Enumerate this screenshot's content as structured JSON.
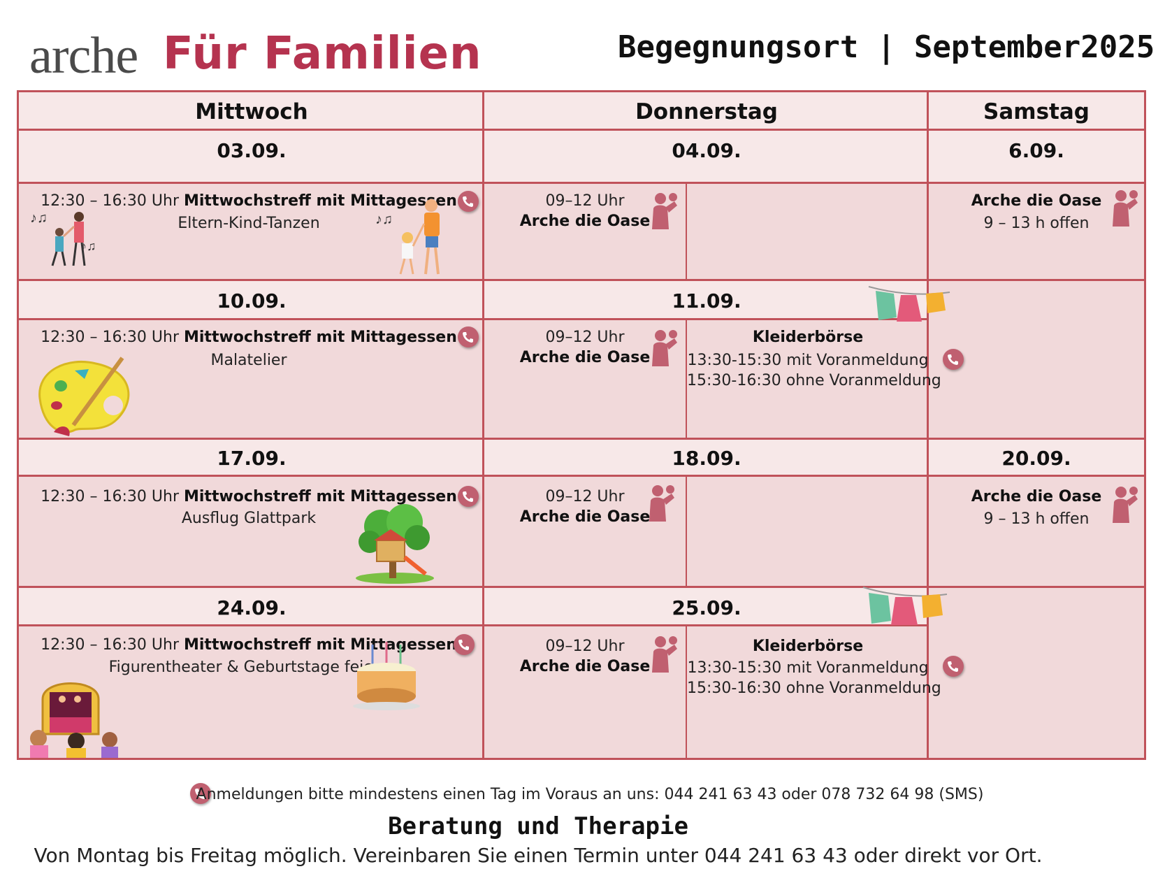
{
  "header": {
    "logo_arche": "arche",
    "logo_familien": "Für Familien",
    "title": "Begegnungsort | September2025"
  },
  "days": {
    "wed": "Mittwoch",
    "thu": "Donnerstag",
    "sat": "Samstag"
  },
  "weeks": [
    {
      "wed_date": "03.09.",
      "thu_date": "04.09.",
      "sat_date": "6.09.",
      "wed_time": "12:30 – 16:30  Uhr ",
      "wed_event": "Mittwochstreff mit Mittagessen",
      "wed_sub": "Eltern-Kind-Tanzen",
      "thu_time": "09–12 Uhr",
      "thu_place": "Arche die Oase",
      "sat_place": "Arche die Oase",
      "sat_hours": "9 – 13 h offen"
    },
    {
      "wed_date": "10.09.",
      "thu_date": "11.09.",
      "wed_time": "12:30 – 16:30  Uhr ",
      "wed_event": "Mittwochstreff mit Mittagessen",
      "wed_sub": "Malatelier",
      "thu_time": "09–12 Uhr",
      "thu_place": "Arche die Oase",
      "kb_title": "Kleiderbörse",
      "kb_line1": "13:30-15:30 mit Voranmeldung",
      "kb_line2": "15:30-16:30 ohne Voranmeldung"
    },
    {
      "wed_date": "17.09.",
      "thu_date": "18.09.",
      "sat_date": "20.09.",
      "wed_time": "12:30 – 16:30  Uhr ",
      "wed_event": "Mittwochstreff mit Mittagessen",
      "wed_sub": "Ausflug Glattpark",
      "thu_time": "09–12 Uhr",
      "thu_place": "Arche die Oase",
      "sat_place": "Arche die Oase",
      "sat_hours": "9 – 13 h offen"
    },
    {
      "wed_date": "24.09.",
      "thu_date": "25.09.",
      "wed_time": "12:30 – 16:30  Uhr ",
      "wed_event": "Mittwochstreff mit Mittagessen",
      "wed_sub": "Figurentheater & Geburtstage feiern",
      "thu_time": "09–12 Uhr",
      "thu_place": "Arche die Oase",
      "kb_title": "Kleiderbörse",
      "kb_line1": "13:30-15:30 mit Voranmeldung",
      "kb_line2": "15:30-16:30 ohne Voranmeldung"
    }
  ],
  "footer": {
    "note": "Anmeldungen bitte mindestens einen Tag im Voraus an uns: 044 241 63 43 oder 078 732 64 98 (SMS)",
    "title": "Beratung und Therapie",
    "text": "Von Montag bis Freitag möglich. Vereinbaren Sie einen Termin unter 044 241 63 43 oder direkt vor Ort."
  },
  "colors": {
    "accent": "#b5334f",
    "border": "#c0525a",
    "cell": "#f1d9da",
    "head": "#f7e8e8"
  },
  "icons": [
    "phone-icon",
    "parent-child-icon",
    "dancing-family-illustration",
    "paint-palette-illustration",
    "playground-tree-illustration",
    "puppet-theater-illustration",
    "birthday-cake-illustration",
    "clothesline-illustration"
  ]
}
